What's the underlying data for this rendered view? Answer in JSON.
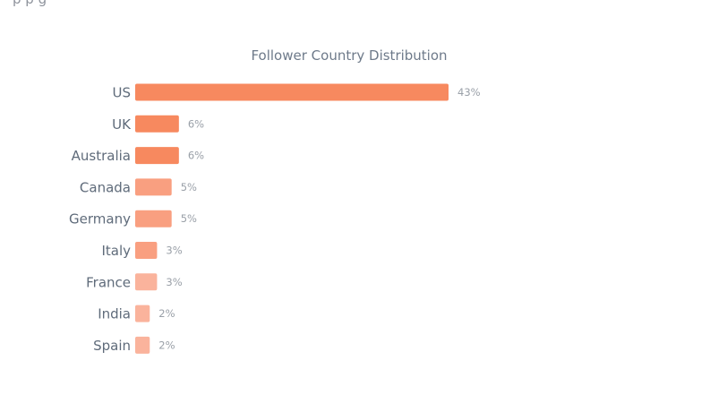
{
  "header": {
    "cutoff_text": "p    p g"
  },
  "chart_data": {
    "type": "bar",
    "orientation": "horizontal",
    "title": "Follower Country Distribution",
    "categories": [
      "US",
      "UK",
      "Australia",
      "Canada",
      "Germany",
      "Italy",
      "France",
      "India",
      "Spain"
    ],
    "values": [
      43,
      6,
      6,
      5,
      5,
      3,
      3,
      2,
      2
    ],
    "value_labels": [
      "43%",
      "6%",
      "6%",
      "5%",
      "5%",
      "3%",
      "3%",
      "2%",
      "2%"
    ],
    "xlabel": "",
    "ylabel": "",
    "grid": false,
    "legend": "none",
    "colors": [
      "#f7895f",
      "#f7895f",
      "#f7895f",
      "#f99f80",
      "#f99f80",
      "#f99f80",
      "#fab39c",
      "#fab39c",
      "#fab39c"
    ]
  }
}
